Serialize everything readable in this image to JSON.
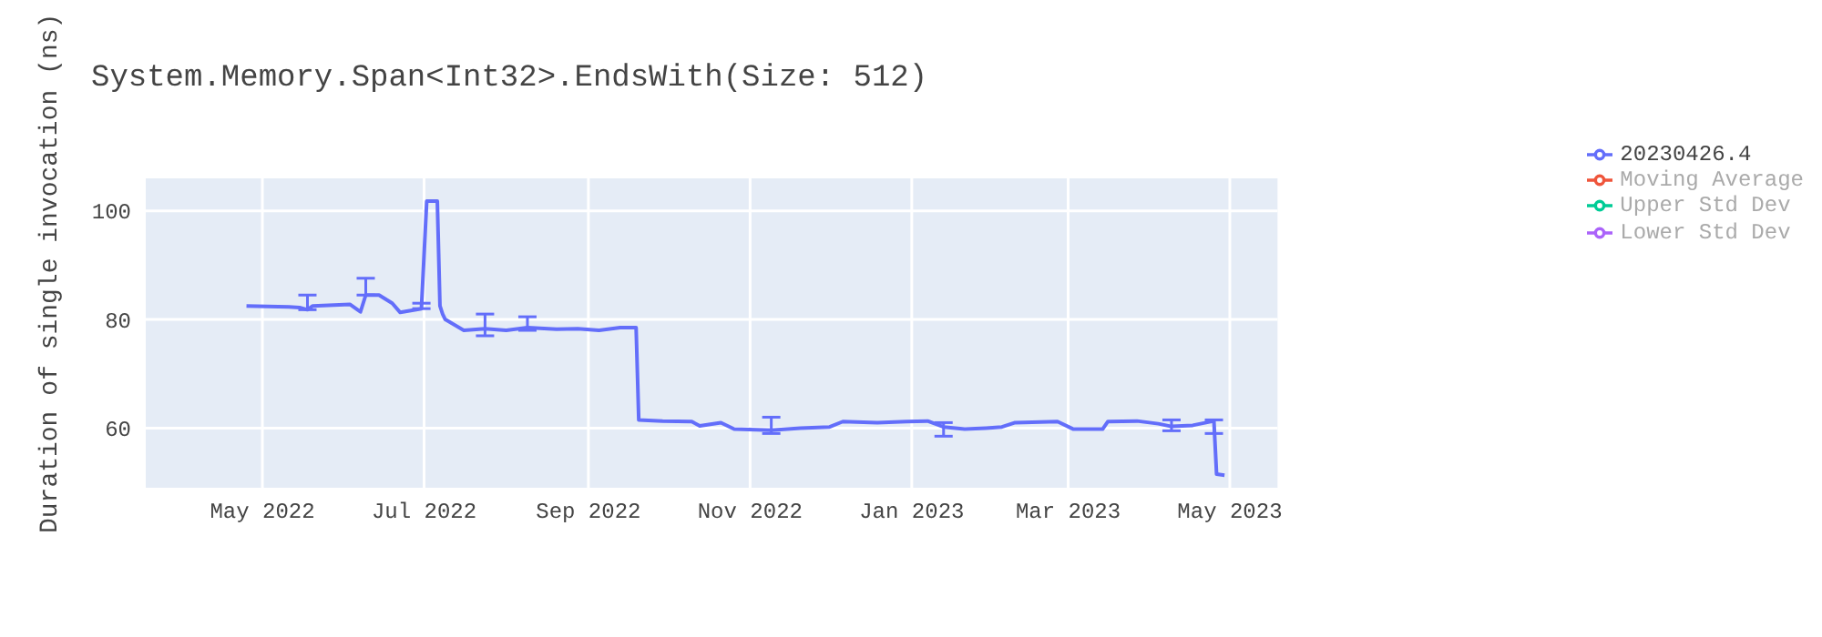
{
  "chart_data": {
    "type": "line",
    "title": "System.Memory.Span<Int32>.EndsWith(Size: 512)",
    "ylabel": "Duration of single invocation (ns)",
    "x": [
      "2022-04-25",
      "2022-05-11",
      "2022-05-15",
      "2022-05-18",
      "2022-05-20",
      "2022-06-03",
      "2022-06-07",
      "2022-06-09",
      "2022-06-14",
      "2022-06-19",
      "2022-06-22",
      "2022-06-30",
      "2022-07-02",
      "2022-07-06",
      "2022-07-07",
      "2022-07-08",
      "2022-07-09",
      "2022-07-16",
      "2022-07-24",
      "2022-08-01",
      "2022-08-09",
      "2022-08-20",
      "2022-08-28",
      "2022-09-05",
      "2022-09-13",
      "2022-09-19",
      "2022-09-20",
      "2022-09-29",
      "2022-10-10",
      "2022-10-13",
      "2022-10-21",
      "2022-10-26",
      "2022-11-09",
      "2022-11-20",
      "2022-12-01",
      "2022-12-06",
      "2022-12-19",
      "2022-12-30",
      "2023-01-07",
      "2023-01-13",
      "2023-01-21",
      "2023-01-29",
      "2023-02-04",
      "2023-02-09",
      "2023-02-25",
      "2023-03-03",
      "2023-03-14",
      "2023-03-16",
      "2023-03-27",
      "2023-04-04",
      "2023-04-09",
      "2023-04-17",
      "2023-04-25",
      "2023-04-26",
      "2023-04-29"
    ],
    "series": [
      {
        "name": "20230426.4",
        "color": "#636efa",
        "values": [
          82.5,
          82.3,
          82.2,
          81.8,
          82.5,
          82.8,
          81.4,
          84.5,
          84.5,
          83,
          81.3,
          82,
          101.8,
          101.8,
          82.5,
          81,
          80,
          78,
          78.3,
          78,
          78.5,
          78.2,
          78.3,
          78,
          78.5,
          78.5,
          61.5,
          61.3,
          61.2,
          60.4,
          61,
          59.8,
          59.6,
          60,
          60.2,
          61.2,
          61,
          61.2,
          61.3,
          60.2,
          59.8,
          60,
          60.2,
          61,
          61.2,
          59.8,
          59.8,
          61.2,
          61.3,
          60.8,
          60.3,
          60.5,
          61.3,
          51.5,
          51.3
        ],
        "errors": [
          null,
          null,
          null,
          [
            81.8,
            84.5
          ],
          null,
          null,
          null,
          [
            84.5,
            87.6
          ],
          null,
          null,
          null,
          [
            82,
            83
          ],
          null,
          null,
          null,
          null,
          null,
          null,
          [
            77,
            81
          ],
          null,
          [
            78,
            80.5
          ],
          null,
          null,
          null,
          null,
          null,
          null,
          null,
          null,
          null,
          null,
          null,
          [
            59,
            62
          ],
          null,
          null,
          null,
          null,
          null,
          null,
          [
            58.5,
            61
          ],
          null,
          null,
          null,
          null,
          null,
          null,
          null,
          null,
          null,
          null,
          [
            59.5,
            61.5
          ],
          null,
          [
            59,
            61.5
          ],
          null,
          null
        ]
      },
      {
        "name": "Moving Average",
        "color": "#ef553b",
        "values": [
          null,
          null,
          null,
          null,
          null,
          null,
          null,
          null,
          null,
          null,
          null,
          null,
          null,
          null,
          null,
          null,
          null,
          null,
          null,
          null,
          null,
          null,
          null,
          null,
          null,
          null,
          null,
          null,
          null,
          null,
          null,
          null,
          null,
          null,
          null,
          null,
          null,
          null,
          null,
          null,
          null,
          null,
          null,
          null,
          null,
          null,
          null,
          null,
          null,
          null,
          null,
          null,
          null,
          null,
          null
        ]
      },
      {
        "name": "Upper Std Dev",
        "color": "#00cc96",
        "values": [
          null,
          null,
          null,
          null,
          null,
          null,
          null,
          null,
          null,
          null,
          null,
          null,
          null,
          null,
          null,
          null,
          null,
          null,
          null,
          null,
          null,
          null,
          null,
          null,
          null,
          null,
          null,
          null,
          null,
          null,
          null,
          null,
          null,
          null,
          null,
          null,
          null,
          null,
          null,
          null,
          null,
          null,
          null,
          null,
          null,
          null,
          null,
          null,
          null,
          null,
          null,
          null,
          null,
          null,
          null
        ]
      },
      {
        "name": "Lower Std Dev",
        "color": "#ab63fa",
        "values": [
          null,
          null,
          null,
          null,
          null,
          null,
          null,
          null,
          null,
          null,
          null,
          null,
          null,
          null,
          null,
          null,
          null,
          null,
          null,
          null,
          null,
          null,
          null,
          null,
          null,
          null,
          null,
          null,
          null,
          null,
          null,
          null,
          null,
          null,
          null,
          null,
          null,
          null,
          null,
          null,
          null,
          null,
          null,
          null,
          null,
          null,
          null,
          null,
          null,
          null,
          null,
          null,
          null,
          null,
          null
        ]
      }
    ],
    "xlim": [
      "2022-03-18",
      "2023-05-19"
    ],
    "xticks": [
      {
        "value": "2022-05-01",
        "label": "May 2022"
      },
      {
        "value": "2022-07-01",
        "label": "Jul 2022"
      },
      {
        "value": "2022-09-01",
        "label": "Sep 2022"
      },
      {
        "value": "2022-11-01",
        "label": "Nov 2022"
      },
      {
        "value": "2023-01-01",
        "label": "Jan 2023"
      },
      {
        "value": "2023-03-01",
        "label": "Mar 2023"
      },
      {
        "value": "2023-05-01",
        "label": "May 2023"
      }
    ],
    "ylim": [
      49,
      106
    ],
    "yticks": [
      60,
      80,
      100
    ],
    "grid": true,
    "legend": "top right"
  }
}
